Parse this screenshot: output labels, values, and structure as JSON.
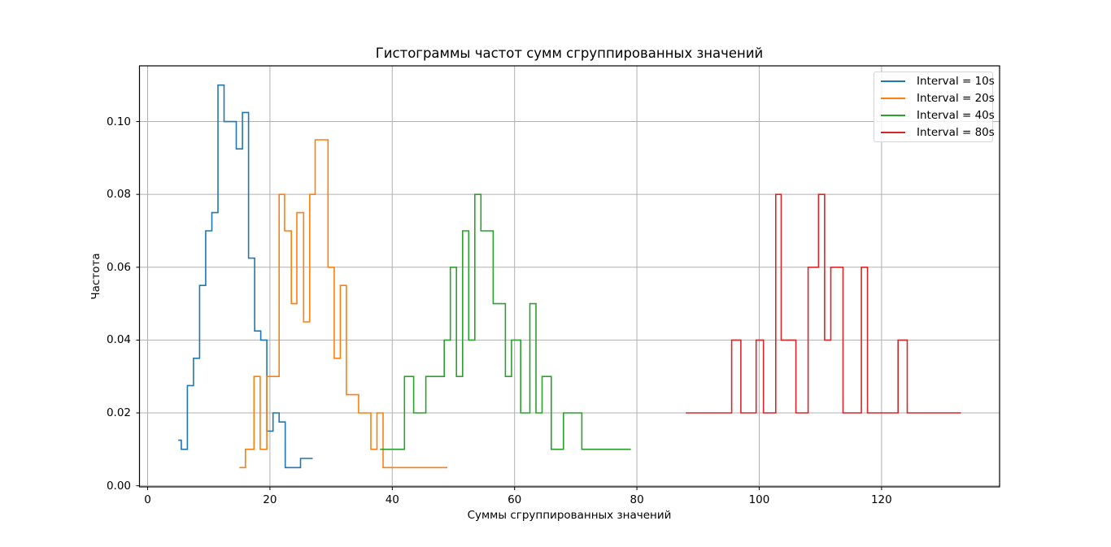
{
  "chart_data": {
    "type": "line",
    "subtype": "step-histogram",
    "title": "Гистограммы частот сумм сгруппированных значений",
    "xlabel": "Суммы сгруппированных значений",
    "ylabel": "Частота",
    "xlim": [
      -1.33,
      139.3
    ],
    "ylim": [
      -0.0003,
      0.1153
    ],
    "xticks": [
      0,
      20,
      40,
      60,
      80,
      100,
      120
    ],
    "xtick_labels": [
      "0",
      "20",
      "40",
      "60",
      "80",
      "100",
      "120"
    ],
    "yticks": [
      0.0,
      0.02,
      0.04,
      0.06,
      0.08,
      0.1
    ],
    "ytick_labels": [
      "0.00",
      "0.02",
      "0.04",
      "0.06",
      "0.08",
      "0.10"
    ],
    "grid": true,
    "legend_position": "upper right",
    "series": [
      {
        "name": "Interval = 10s",
        "color": "#1f77b4",
        "segments": [
          [
            5.0,
            5.5,
            0.0125
          ],
          [
            5.5,
            6.5,
            0.01
          ],
          [
            6.5,
            7.5,
            0.0275
          ],
          [
            7.5,
            8.5,
            0.035
          ],
          [
            8.5,
            9.5,
            0.055
          ],
          [
            9.5,
            10.5,
            0.07
          ],
          [
            10.5,
            11.5,
            0.075
          ],
          [
            11.5,
            12.5,
            0.11
          ],
          [
            12.5,
            14.5,
            0.1
          ],
          [
            14.5,
            15.5,
            0.0925
          ],
          [
            15.5,
            16.5,
            0.1025
          ],
          [
            16.5,
            17.5,
            0.0625
          ],
          [
            17.5,
            18.5,
            0.0425
          ],
          [
            18.5,
            19.5,
            0.04
          ],
          [
            19.5,
            20.5,
            0.015
          ],
          [
            20.5,
            21.5,
            0.02
          ],
          [
            21.5,
            22.5,
            0.0175
          ],
          [
            22.5,
            25.0,
            0.005
          ],
          [
            25.0,
            27.0,
            0.0075
          ]
        ]
      },
      {
        "name": "Interval = 20s",
        "color": "#ff7f0e",
        "segments": [
          [
            15.0,
            16.0,
            0.005
          ],
          [
            16.0,
            17.4,
            0.01
          ],
          [
            17.4,
            18.4,
            0.03
          ],
          [
            18.4,
            19.5,
            0.01
          ],
          [
            19.5,
            21.5,
            0.03
          ],
          [
            21.5,
            22.4,
            0.08
          ],
          [
            22.4,
            23.5,
            0.07
          ],
          [
            23.5,
            24.4,
            0.05
          ],
          [
            24.4,
            25.5,
            0.075
          ],
          [
            25.5,
            26.5,
            0.045
          ],
          [
            26.5,
            27.4,
            0.08
          ],
          [
            27.4,
            29.5,
            0.095
          ],
          [
            29.5,
            30.5,
            0.06
          ],
          [
            30.5,
            31.5,
            0.035
          ],
          [
            31.5,
            32.5,
            0.055
          ],
          [
            32.5,
            34.5,
            0.025
          ],
          [
            34.5,
            36.5,
            0.02
          ],
          [
            36.5,
            37.5,
            0.01
          ],
          [
            37.5,
            38.5,
            0.02
          ],
          [
            38.5,
            49.0,
            0.005
          ]
        ]
      },
      {
        "name": "Interval = 40s",
        "color": "#2ca02c",
        "segments": [
          [
            38.0,
            42.0,
            0.01
          ],
          [
            42.0,
            43.5,
            0.03
          ],
          [
            43.5,
            45.5,
            0.02
          ],
          [
            45.5,
            48.5,
            0.03
          ],
          [
            48.5,
            49.5,
            0.04
          ],
          [
            49.5,
            50.5,
            0.06
          ],
          [
            50.5,
            51.5,
            0.03
          ],
          [
            51.5,
            52.5,
            0.07
          ],
          [
            52.5,
            53.5,
            0.04
          ],
          [
            53.5,
            54.5,
            0.08
          ],
          [
            54.5,
            56.5,
            0.07
          ],
          [
            56.5,
            58.5,
            0.05
          ],
          [
            58.5,
            59.5,
            0.03
          ],
          [
            59.5,
            61.0,
            0.04
          ],
          [
            61.0,
            62.5,
            0.02
          ],
          [
            62.5,
            63.5,
            0.05
          ],
          [
            63.5,
            64.5,
            0.02
          ],
          [
            64.5,
            66.0,
            0.03
          ],
          [
            66.0,
            68.0,
            0.01
          ],
          [
            68.0,
            71.0,
            0.02
          ],
          [
            71.0,
            79.0,
            0.01
          ]
        ]
      },
      {
        "name": "Interval = 80s",
        "color": "#d62728",
        "segments": [
          [
            88.0,
            95.5,
            0.02
          ],
          [
            95.5,
            97.0,
            0.04
          ],
          [
            97.0,
            99.5,
            0.02
          ],
          [
            99.5,
            100.7,
            0.04
          ],
          [
            100.7,
            102.7,
            0.02
          ],
          [
            102.7,
            103.6,
            0.08
          ],
          [
            103.6,
            106.0,
            0.04
          ],
          [
            106.0,
            108.0,
            0.02
          ],
          [
            108.0,
            109.7,
            0.06
          ],
          [
            109.7,
            110.7,
            0.08
          ],
          [
            110.7,
            111.7,
            0.04
          ],
          [
            111.7,
            113.7,
            0.06
          ],
          [
            113.7,
            116.7,
            0.02
          ],
          [
            116.7,
            117.7,
            0.06
          ],
          [
            117.7,
            122.7,
            0.02
          ],
          [
            122.7,
            124.2,
            0.04
          ],
          [
            124.2,
            133.0,
            0.02
          ]
        ]
      }
    ]
  },
  "legend": {
    "items": [
      {
        "label": "Interval = 10s",
        "color": "#1f77b4"
      },
      {
        "label": "Interval = 20s",
        "color": "#ff7f0e"
      },
      {
        "label": "Interval = 40s",
        "color": "#2ca02c"
      },
      {
        "label": "Interval = 80s",
        "color": "#d62728"
      }
    ]
  }
}
